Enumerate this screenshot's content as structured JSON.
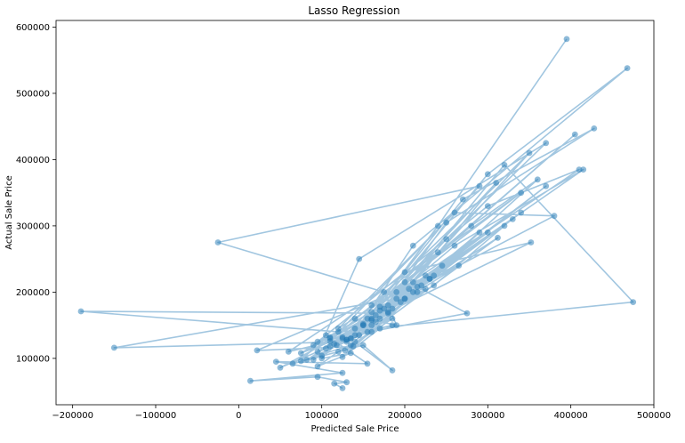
{
  "chart_data": {
    "type": "line",
    "title": "Lasso Regression",
    "xlabel": "Predicted Sale Price",
    "ylabel": "Actual Sale Price",
    "xlim": [
      -220000,
      500000
    ],
    "ylim": [
      30000,
      610000
    ],
    "x_ticks": [
      -200000,
      -100000,
      0,
      100000,
      200000,
      300000,
      400000,
      500000
    ],
    "x_tick_labels": [
      "−200000",
      "−100000",
      "0",
      "100000",
      "200000",
      "300000",
      "400000",
      "500000"
    ],
    "y_ticks": [
      100000,
      200000,
      300000,
      400000,
      500000,
      600000
    ],
    "y_tick_labels": [
      "100000",
      "200000",
      "300000",
      "400000",
      "500000",
      "600000"
    ],
    "grid": false,
    "legend": "none",
    "series": [
      {
        "color": "#1f77b4",
        "marker": "circle",
        "alpha": 0.5,
        "x": [
          395000,
          240000,
          150000,
          300000,
          468000,
          210000,
          135000,
          270000,
          428000,
          250000,
          160000,
          320000,
          475000,
          120000,
          -190000,
          180000,
          310000,
          130000,
          -150000,
          190000,
          350000,
          160000,
          110000,
          290000,
          -25000,
          175000,
          340000,
          140000,
          200000,
          405000,
          160000,
          90000,
          300000,
          410000,
          190000,
          120000,
          260000,
          380000,
          170000,
          130000,
          330000,
          220000,
          95000,
          145000,
          370000,
          250000,
          170000,
          125000,
          280000,
          360000,
          200000,
          110000,
          185000,
          340000,
          155000,
          100000,
          300000,
          225000,
          140000,
          415000,
          260000,
          118000,
          200000,
          352000,
          180000,
          90000,
          235000,
          320000,
          165000,
          105000,
          265000,
          210000,
          150000,
          370000,
          135000,
          290000,
          230000,
          75000,
          185000,
          128000,
          312000,
          210000,
          160000,
          60000,
          240000,
          140000,
          185000,
          95000,
          275000,
          215000,
          170000,
          125000,
          230000,
          195000,
          160000,
          50000,
          110000,
          245000,
          200000,
          82000,
          155000,
          215000,
          138000,
          22000,
          235000,
          175000,
          130000,
          150000,
          180000,
          190000,
          160000,
          145000,
          205000,
          170000,
          115000,
          125000,
          100000,
          135000,
          95000,
          120000,
          140000,
          185000,
          150000,
          65000,
          110000,
          225000,
          165000,
          135000,
          75000,
          105000,
          155000,
          45000,
          125000,
          14000,
          95000,
          130000,
          115000,
          125000
        ],
        "y": [
          582000,
          300000,
          150000,
          378000,
          538000,
          270000,
          130000,
          340000,
          447000,
          305000,
          150000,
          392000,
          185000,
          140000,
          171000,
          168000,
          365000,
          125000,
          116000,
          190000,
          410000,
          180000,
          126000,
          360000,
          275000,
          200000,
          350000,
          160000,
          215000,
          438000,
          170000,
          120000,
          330000,
          385000,
          200000,
          145000,
          320000,
          315000,
          178000,
          128000,
          310000,
          210000,
          110000,
          250000,
          425000,
          280000,
          172000,
          130000,
          300000,
          370000,
          190000,
          132000,
          175000,
          320000,
          160000,
          104000,
          290000,
          225000,
          145000,
          385000,
          270000,
          120000,
          230000,
          275000,
          170000,
          98000,
          210000,
          300000,
          165000,
          115000,
          240000,
          215000,
          150000,
          360000,
          130000,
          290000,
          220000,
          108000,
          160000,
          112000,
          282000,
          200000,
          140000,
          110000,
          260000,
          135000,
          150000,
          125000,
          168000,
          208000,
          145000,
          102000,
          220000,
          185000,
          160000,
          86000,
          118000,
          240000,
          190000,
          98000,
          140000,
          200000,
          118000,
          112000,
          225000,
          175000,
          128000,
          152000,
          180000,
          150000,
          158000,
          135000,
          205000,
          160000,
          122000,
          132000,
          100000,
          108000,
          88000,
          110000,
          125000,
          82000,
          120000,
          92000,
          130000,
          205000,
          155000,
          120000,
          96000,
          135000,
          92000,
          95000,
          78000,
          66000,
          72000,
          64000,
          62000,
          55000
        ]
      }
    ]
  }
}
